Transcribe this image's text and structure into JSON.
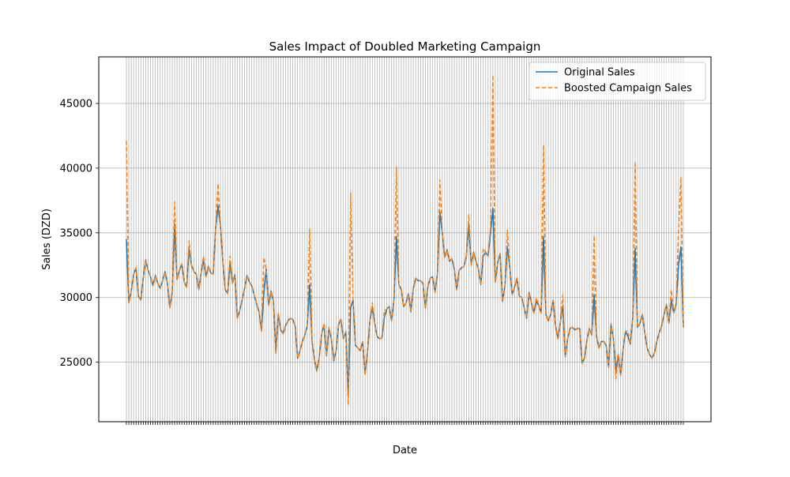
{
  "chart_data": {
    "type": "line",
    "title": "Sales Impact of Doubled Marketing Campaign",
    "xlabel": "Date",
    "ylabel": "Sales (DZD)",
    "ylim": [
      20400,
      48600
    ],
    "yticks": [
      25000,
      30000,
      35000,
      40000,
      45000
    ],
    "grid": true,
    "legend_position": "top-right",
    "x_tick_note": "dense overlapping date labels at every data point (illegible)",
    "series": [
      {
        "name": "Original Sales",
        "color": "#1f77b4",
        "style": "solid",
        "values": [
          34500,
          29600,
          30500,
          31800,
          32300,
          30100,
          29800,
          31500,
          32900,
          32100,
          31600,
          30900,
          31700,
          31100,
          30700,
          31300,
          32000,
          31100,
          29200,
          30400,
          35700,
          31400,
          32100,
          32600,
          31200,
          30800,
          33800,
          32500,
          32000,
          31800,
          30600,
          31900,
          32900,
          31600,
          32400,
          31900,
          31800,
          35300,
          37100,
          35600,
          32800,
          30600,
          30300,
          32700,
          31100,
          31800,
          28400,
          29000,
          29800,
          30700,
          31700,
          31200,
          30900,
          30200,
          29500,
          28900,
          27400,
          30300,
          32200,
          29400,
          30500,
          29700,
          25700,
          28700,
          27500,
          27200,
          27800,
          28200,
          28400,
          28300,
          27800,
          25300,
          25900,
          26600,
          27100,
          27800,
          31000,
          26600,
          25200,
          24300,
          25400,
          27200,
          27900,
          25500,
          27600,
          26800,
          25100,
          25900,
          27900,
          28300,
          26800,
          27300,
          22300,
          29200,
          29800,
          26300,
          26100,
          25900,
          26600,
          24100,
          25800,
          28200,
          29300,
          28000,
          27000,
          26800,
          26900,
          28500,
          29100,
          29300,
          28200,
          29900,
          34700,
          31000,
          30600,
          29300,
          29600,
          30300,
          28900,
          30700,
          31500,
          31300,
          31300,
          31100,
          29200,
          30800,
          31500,
          31600,
          30400,
          31800,
          36600,
          35000,
          33100,
          33700,
          32800,
          33000,
          32200,
          30600,
          32100,
          32300,
          32400,
          33200,
          35700,
          32500,
          33500,
          32800,
          32200,
          31000,
          33200,
          33500,
          33200,
          34900,
          36900,
          31200,
          32700,
          33400,
          29700,
          30900,
          33900,
          32400,
          30200,
          30800,
          31500,
          30100,
          30000,
          29200,
          28400,
          30400,
          29600,
          28800,
          29700,
          29400,
          28800,
          34700,
          28700,
          28200,
          28700,
          29800,
          27800,
          26800,
          28100,
          29400,
          25400,
          26800,
          27600,
          27700,
          27500,
          27600,
          27600,
          24900,
          25300,
          26700,
          27600,
          27100,
          30200,
          27000,
          26100,
          26600,
          26600,
          26300,
          24600,
          27900,
          26800,
          24300,
          25600,
          24000,
          26000,
          27400,
          27000,
          26400,
          28400,
          33800,
          27700,
          28000,
          28700,
          27300,
          26100,
          25600,
          25300,
          25700,
          26600,
          27300,
          27800,
          28700,
          29400,
          28000,
          29800,
          28800,
          29500,
          32500,
          33900,
          27700
        ]
      },
      {
        "name": "Boosted Campaign Sales",
        "color": "#ff7f0e",
        "style": "dashed",
        "values": [
          42100,
          29600,
          30500,
          31800,
          32300,
          30100,
          29800,
          31500,
          32900,
          32100,
          31600,
          30900,
          31700,
          31100,
          30700,
          31300,
          32000,
          31100,
          29200,
          30400,
          37400,
          31400,
          32100,
          32600,
          31200,
          30800,
          34400,
          32500,
          32000,
          31800,
          30600,
          31900,
          33200,
          31600,
          32400,
          31900,
          31800,
          35300,
          38800,
          35600,
          32800,
          30600,
          30300,
          33200,
          31100,
          31800,
          28400,
          29000,
          29800,
          30700,
          31700,
          31200,
          30900,
          30200,
          29500,
          28900,
          27400,
          33100,
          32200,
          29400,
          30500,
          29700,
          25700,
          28800,
          27500,
          27200,
          27800,
          28200,
          28400,
          28300,
          27800,
          25300,
          25900,
          26600,
          27100,
          27800,
          35300,
          26600,
          25200,
          24300,
          25400,
          27200,
          28000,
          25500,
          27700,
          26800,
          25100,
          25900,
          27900,
          28400,
          26800,
          27400,
          21700,
          38100,
          29800,
          26300,
          26100,
          25900,
          26600,
          24000,
          25800,
          28200,
          29600,
          28000,
          27000,
          26800,
          26900,
          29000,
          29100,
          29300,
          28200,
          29900,
          40100,
          31000,
          30600,
          29300,
          29600,
          30300,
          28900,
          30700,
          31500,
          31300,
          31300,
          31100,
          29200,
          30800,
          31500,
          31600,
          30400,
          31800,
          39100,
          35000,
          33100,
          33700,
          32800,
          33000,
          32200,
          30600,
          32100,
          32300,
          32400,
          33200,
          36400,
          32500,
          33500,
          32800,
          32200,
          31000,
          33800,
          33500,
          33200,
          35400,
          47200,
          31200,
          32700,
          33400,
          29700,
          30900,
          35200,
          32400,
          30200,
          30800,
          31500,
          30100,
          30000,
          29200,
          28400,
          30400,
          29600,
          28800,
          30000,
          29400,
          28800,
          41800,
          28700,
          28200,
          28700,
          29800,
          27800,
          26800,
          28100,
          30200,
          25400,
          26800,
          27600,
          27700,
          27500,
          27600,
          27600,
          24900,
          25300,
          26700,
          27600,
          27100,
          34800,
          27000,
          26100,
          26600,
          26600,
          26300,
          24600,
          28000,
          26800,
          23700,
          25600,
          24000,
          26000,
          27400,
          27400,
          26400,
          28400,
          40500,
          27700,
          28000,
          28700,
          27300,
          26100,
          25600,
          25300,
          25700,
          26600,
          27300,
          27800,
          28700,
          29500,
          28000,
          30600,
          28800,
          29500,
          35200,
          39300,
          27700
        ]
      }
    ]
  }
}
